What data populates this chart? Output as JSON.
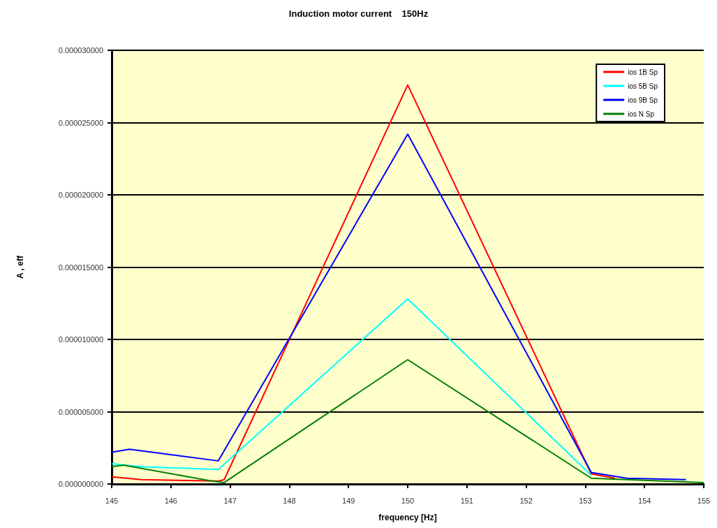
{
  "chart_data": {
    "type": "line",
    "title": "Induction motor current    150Hz",
    "xlabel": "frequency [Hz]",
    "ylabel": "A , eff",
    "series": [
      {
        "name": "ios 1B Sp",
        "color": "#ff0000",
        "x": [
          145,
          145.5,
          146.8,
          146.9,
          150,
          153.1,
          153.5
        ],
        "values": [
          5e-07,
          3e-07,
          2e-07,
          3e-07,
          2.76e-05,
          7e-07,
          4e-07
        ]
      },
      {
        "name": "ios 5B Sp",
        "color": "#00ffff",
        "x": [
          145,
          145.5,
          146.8,
          150,
          153.1
        ],
        "values": [
          1.4e-06,
          1.2e-06,
          1e-06,
          1.28e-05,
          6e-07
        ]
      },
      {
        "name": "ios 9B Sp",
        "color": "#0000ff",
        "x": [
          145,
          145.3,
          146.8,
          150,
          153.1,
          153.7,
          154.7
        ],
        "values": [
          2.2e-06,
          2.4e-06,
          1.6e-06,
          2.42e-05,
          8e-07,
          4e-07,
          3e-07
        ]
      },
      {
        "name": "ios N Sp",
        "color": "#008000",
        "x": [
          145,
          145.2,
          146.7,
          146.9,
          150,
          153.1,
          155
        ],
        "values": [
          1.2e-06,
          1.3e-06,
          2e-07,
          1e-07,
          8.6e-06,
          4e-07,
          1e-07
        ]
      }
    ],
    "xlim": [
      145,
      155
    ],
    "xticks": [
      145,
      146,
      147,
      148,
      149,
      150,
      151,
      152,
      153,
      154,
      155
    ],
    "ylim": [
      0,
      3e-05
    ],
    "yticks": [
      {
        "value": 0,
        "label": "0.000000000"
      },
      {
        "value": 5e-06,
        "label": "0.000005000"
      },
      {
        "value": 1e-05,
        "label": "0.000010000"
      },
      {
        "value": 1.5e-05,
        "label": "0.000015000"
      },
      {
        "value": 2e-05,
        "label": "0.000020000"
      },
      {
        "value": 2.5e-05,
        "label": "0.000025000"
      },
      {
        "value": 3e-05,
        "label": "0.000030000"
      }
    ],
    "grid": "y",
    "legend": "top right",
    "marker": "none",
    "line_style": "solid"
  }
}
